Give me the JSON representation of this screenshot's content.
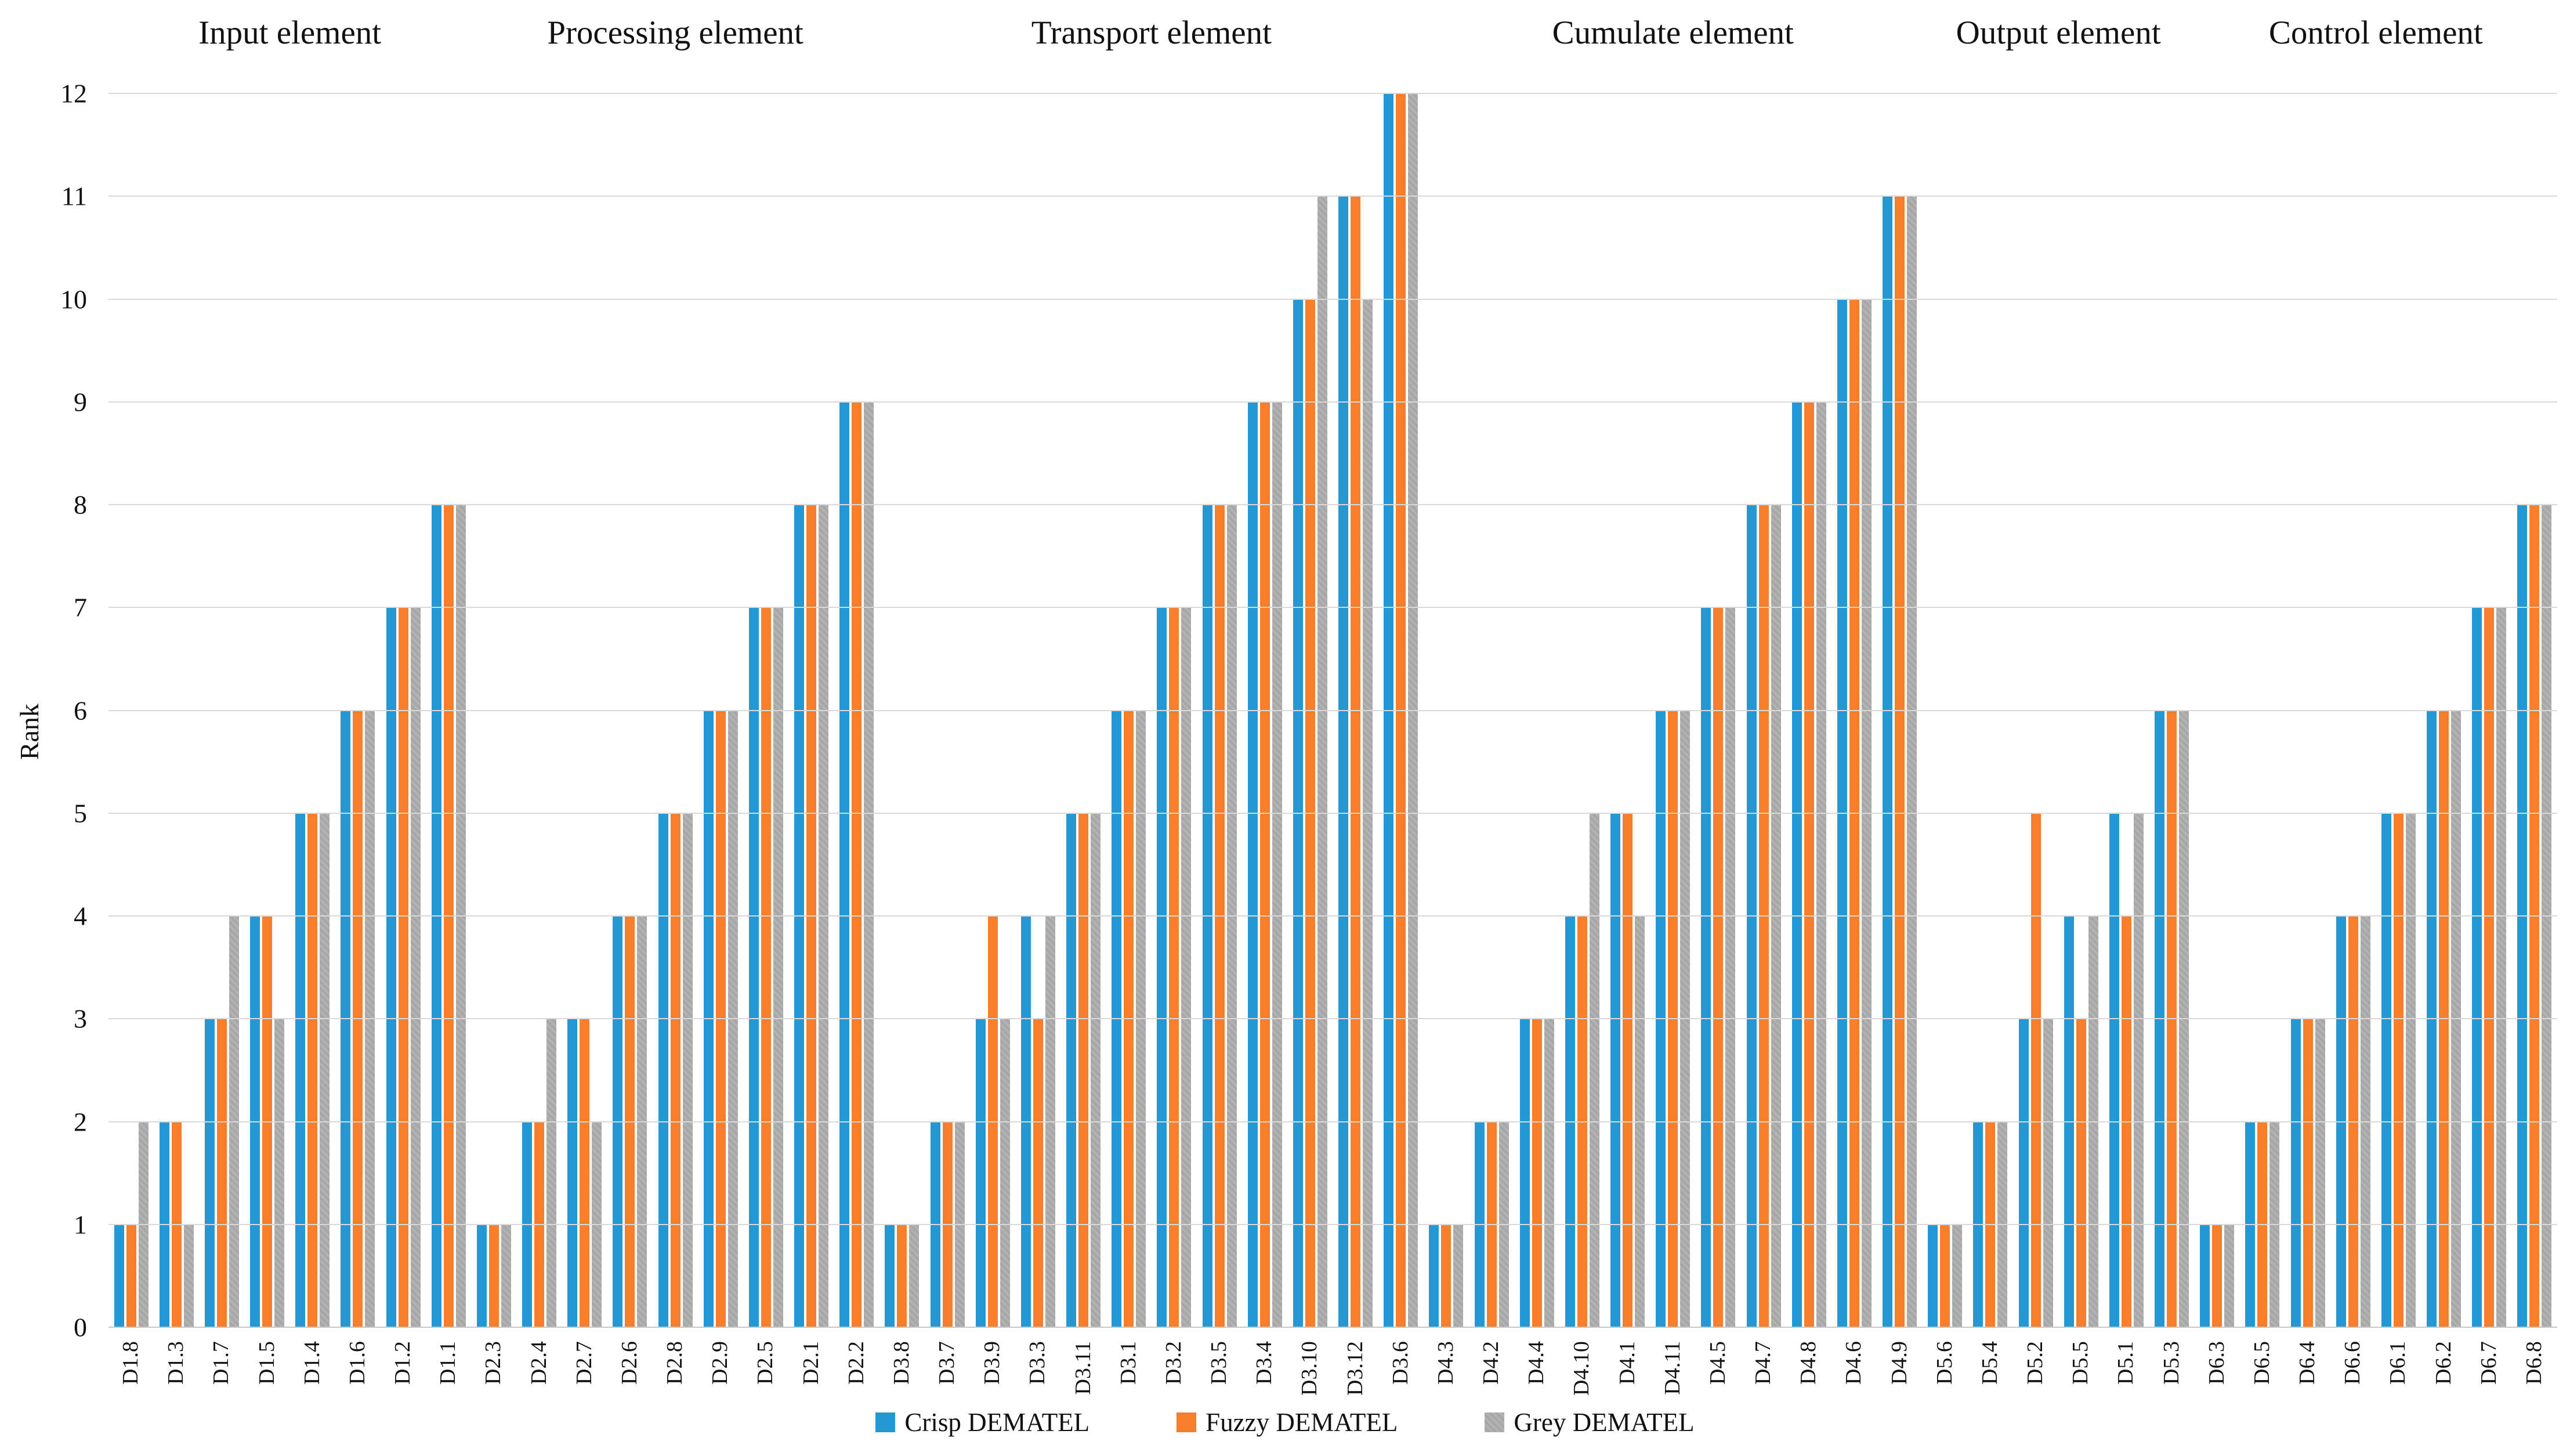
{
  "chart_data": {
    "type": "bar",
    "title": "",
    "xlabel": "",
    "ylabel": "Rank",
    "ylim": [
      0,
      12
    ],
    "ytick_step": 1,
    "grid": true,
    "legend_position": "bottom",
    "series_meta": [
      {
        "key": "crisp",
        "name": "Crisp DEMATEL",
        "color": "#2498D5"
      },
      {
        "key": "fuzzy",
        "name": "Fuzzy DEMATEL",
        "color": "#F97E2B"
      },
      {
        "key": "grey",
        "name": "Grey DEMATEL",
        "color": "#ABABAB"
      }
    ],
    "sections": [
      {
        "label": "Input element",
        "categories": [
          "D1.8",
          "D1.3",
          "D1.7",
          "D1.5",
          "D1.4",
          "D1.6",
          "D1.2",
          "D1.1"
        ],
        "series": {
          "crisp": [
            1,
            2,
            3,
            4,
            5,
            6,
            7,
            8
          ],
          "fuzzy": [
            1,
            2,
            3,
            4,
            5,
            6,
            7,
            8
          ],
          "grey": [
            2,
            1,
            4,
            3,
            5,
            6,
            7,
            8
          ]
        }
      },
      {
        "label": "Processing element",
        "categories": [
          "D2.3",
          "D2.4",
          "D2.7",
          "D2.6",
          "D2.8",
          "D2.9",
          "D2.5",
          "D2.1",
          "D2.2"
        ],
        "series": {
          "crisp": [
            1,
            2,
            3,
            4,
            5,
            6,
            7,
            8,
            9
          ],
          "fuzzy": [
            1,
            2,
            3,
            4,
            5,
            6,
            7,
            8,
            9
          ],
          "grey": [
            1,
            3,
            2,
            4,
            5,
            6,
            7,
            8,
            9
          ]
        }
      },
      {
        "label": "Transport element",
        "categories": [
          "D3.8",
          "D3.7",
          "D3.9",
          "D3.3",
          "D3.11",
          "D3.1",
          "D3.2",
          "D3.5",
          "D3.4",
          "D3.10",
          "D3.12",
          "D3.6"
        ],
        "series": {
          "crisp": [
            1,
            2,
            3,
            4,
            5,
            6,
            7,
            8,
            9,
            10,
            11,
            12
          ],
          "fuzzy": [
            1,
            2,
            4,
            3,
            5,
            6,
            7,
            8,
            9,
            10,
            11,
            12
          ],
          "grey": [
            1,
            2,
            3,
            4,
            5,
            6,
            7,
            8,
            9,
            11,
            10,
            12
          ]
        }
      },
      {
        "label": "Cumulate element",
        "categories": [
          "D4.3",
          "D4.2",
          "D4.4",
          "D4.10",
          "D4.1",
          "D4.11",
          "D4.5",
          "D4.7",
          "D4.8",
          "D4.6",
          "D4.9"
        ],
        "series": {
          "crisp": [
            1,
            2,
            3,
            4,
            5,
            6,
            7,
            8,
            9,
            10,
            11
          ],
          "fuzzy": [
            1,
            2,
            3,
            4,
            5,
            6,
            7,
            8,
            9,
            10,
            11
          ],
          "grey": [
            1,
            2,
            3,
            5,
            4,
            6,
            7,
            8,
            9,
            10,
            11
          ]
        }
      },
      {
        "label": "Output element",
        "categories": [
          "D5.6",
          "D5.4",
          "D5.2",
          "D5.5",
          "D5.1",
          "D5.3"
        ],
        "series": {
          "crisp": [
            1,
            2,
            3,
            4,
            5,
            6
          ],
          "fuzzy": [
            1,
            2,
            5,
            3,
            4,
            6
          ],
          "grey": [
            1,
            2,
            3,
            4,
            5,
            6
          ]
        }
      },
      {
        "label": "Control element",
        "categories": [
          "D6.3",
          "D6.5",
          "D6.4",
          "D6.6",
          "D6.1",
          "D6.2",
          "D6.7",
          "D6.8"
        ],
        "series": {
          "crisp": [
            1,
            2,
            3,
            4,
            5,
            6,
            7,
            8
          ],
          "fuzzy": [
            1,
            2,
            3,
            4,
            5,
            6,
            7,
            8
          ],
          "grey": [
            1,
            2,
            3,
            4,
            5,
            6,
            7,
            8
          ]
        }
      }
    ]
  }
}
